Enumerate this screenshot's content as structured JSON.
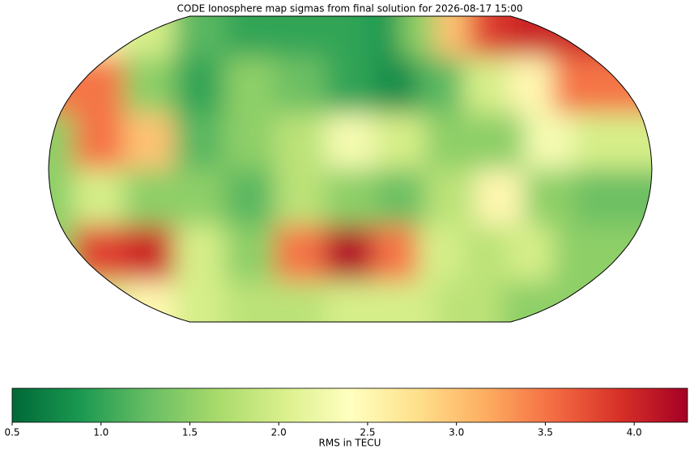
{
  "chart_data": {
    "type": "heatmap-map",
    "title": "CODE Ionosphere map sigmas from final solution for 2026-08-17 15:00",
    "colorbar_label": "RMS in TECU",
    "x": [
      -180,
      -150,
      -120,
      -90,
      -60,
      -30,
      0,
      30,
      60,
      90,
      120,
      150
    ],
    "y": [
      75,
      45,
      15,
      -15,
      -45,
      -75
    ],
    "values": [
      [
        3.0,
        2.5,
        2.0,
        1.2,
        1.0,
        1.0,
        1.0,
        0.9,
        1.5,
        3.0,
        3.8,
        4.0
      ],
      [
        3.5,
        3.5,
        1.5,
        1.0,
        1.5,
        1.3,
        1.0,
        0.8,
        1.2,
        2.0,
        2.5,
        3.5
      ],
      [
        1.5,
        3.5,
        3.0,
        1.2,
        1.5,
        1.8,
        2.3,
        2.0,
        1.5,
        1.5,
        2.3,
        2.0
      ],
      [
        1.5,
        2.0,
        1.5,
        1.5,
        1.2,
        1.8,
        1.5,
        1.3,
        1.8,
        2.5,
        1.5,
        1.3
      ],
      [
        1.5,
        3.8,
        4.0,
        2.0,
        1.5,
        3.5,
        4.2,
        3.5,
        2.0,
        1.8,
        2.0,
        1.5
      ],
      [
        1.5,
        2.0,
        2.5,
        2.0,
        1.8,
        1.8,
        2.0,
        2.0,
        2.0,
        1.8,
        1.8,
        1.5
      ]
    ],
    "clim": [
      0.5,
      4.3
    ],
    "cticks": [
      0.5,
      {
        "value": 1,
        "label": "1.0"
      },
      1.5,
      {
        "value": 2,
        "label": "2.0"
      },
      2.5,
      {
        "value": 3,
        "label": "3.0"
      },
      3.5,
      {
        "value": 4,
        "label": "4.0"
      }
    ],
    "colormap": [
      "#006837",
      "#1a9850",
      "#66bd63",
      "#a6d96a",
      "#d9ef8b",
      "#ffffbf",
      "#fee08b",
      "#fdae61",
      "#f46d43",
      "#d73027",
      "#a50026"
    ]
  }
}
